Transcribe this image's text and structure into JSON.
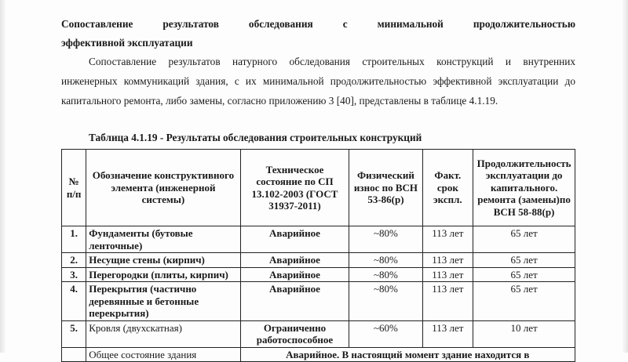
{
  "heading": {
    "line1": "Сопоставление результатов обследования с минимальной продолжительностью",
    "line2": "эффективной эксплуатации"
  },
  "paragraph": {
    "line1": "Сопоставление результатов натурного обследования строительных конструкций и внутренних",
    "line2": "инженерных коммуникаций здания, с их минимальной продолжительностью эффективной эксплуатации до",
    "line3": "капитального ремонта, либо замены, согласно приложению 3 [40], представлены в таблице 4.1.19."
  },
  "table": {
    "caption": "Таблица 4.1.19 - Результаты обследования строительных конструкций",
    "headers": [
      "№ п/п",
      "Обозначение конструктивного элемента (инженерной системы)",
      "Техническое состояние по СП 13.102-2003 (ГОСТ 31937-2011)",
      "Физический износ по ВСН 53-86(р)",
      "Факт. срок экспл.",
      "Продолжительность эксплуатации до капитального. ремонта (замены)по ВСН 58-88(р)"
    ],
    "rows": [
      {
        "num": "1.",
        "element": "Фундаменты (бутовые ленточные)",
        "state": "Аварийное",
        "wear": "~80%",
        "age": "113 лет",
        "life": "65 лет"
      },
      {
        "num": "2.",
        "element": "Несущие стены (кирпич)",
        "state": "Аварийное",
        "wear": "~80%",
        "age": "113 лет",
        "life": "65 лет"
      },
      {
        "num": "3.",
        "element": "Перегородки (плиты, кирпич)",
        "state": "Аварийное",
        "wear": "~80%",
        "age": "113 лет",
        "life": "65 лет"
      },
      {
        "num": "4.",
        "element": "Перекрытия (частично деревянные и бетонные перекрытия)",
        "state": "Аварийное",
        "wear": "~80%",
        "age": "113 лет",
        "life": "65 лет"
      },
      {
        "num": "5.",
        "element": "Кровля (двухскатная)",
        "state": "Ограниченно работоспособное",
        "wear": "~60%",
        "age": "113 лет",
        "life": "10 лет"
      }
    ],
    "summary": {
      "label": "Общее состояние здания",
      "value": "Аварийное. В настоящий момент здание находится в"
    }
  }
}
